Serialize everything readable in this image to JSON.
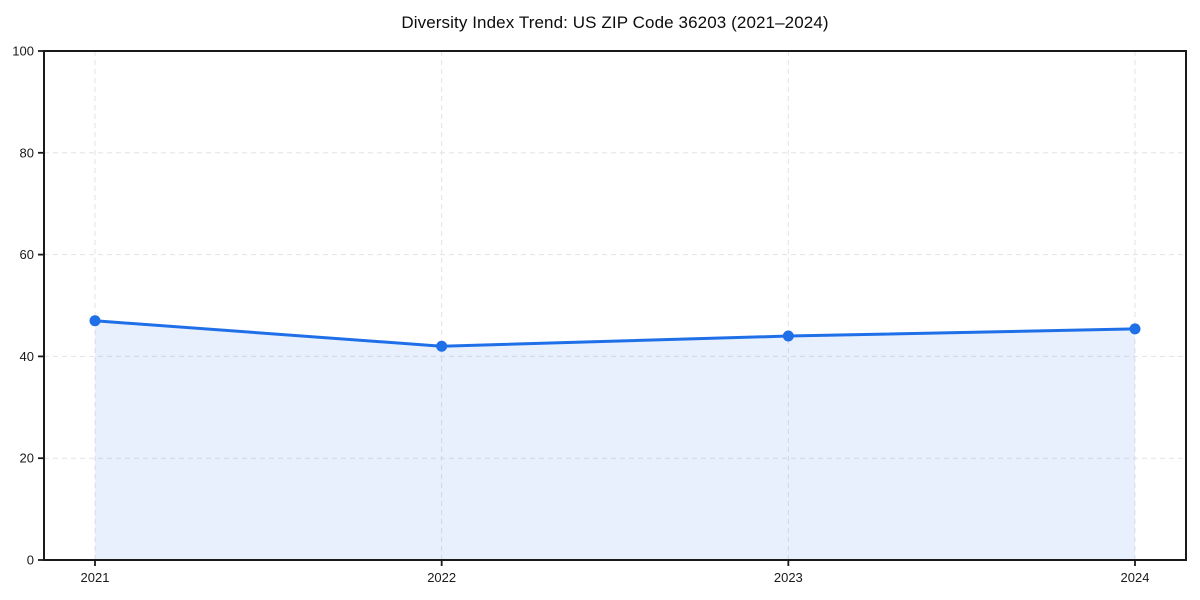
{
  "chart_data": {
    "type": "line",
    "title": "Diversity Index Trend: US ZIP Code 36203 (2021–2024)",
    "categories": [
      "2021",
      "2022",
      "2023",
      "2024"
    ],
    "series": [
      {
        "name": "Diversity Index",
        "values": [
          47,
          42,
          44,
          45.4
        ]
      }
    ],
    "xlabel": "",
    "ylabel": "",
    "ylim": [
      0,
      100
    ],
    "yticks": [
      0,
      20,
      40,
      60,
      80,
      100
    ],
    "grid": true,
    "grid_style": "dashed",
    "legend": "none",
    "area_fill": true,
    "marker": "circle",
    "colors": {
      "line": "#1f6fe8",
      "marker": "#1f6fe8",
      "area_fill_opacity": 0.1,
      "grid": "#e3e3e3",
      "spine": "#1a1a1a",
      "text": "#1a1a1a",
      "background": "#ffffff"
    }
  }
}
